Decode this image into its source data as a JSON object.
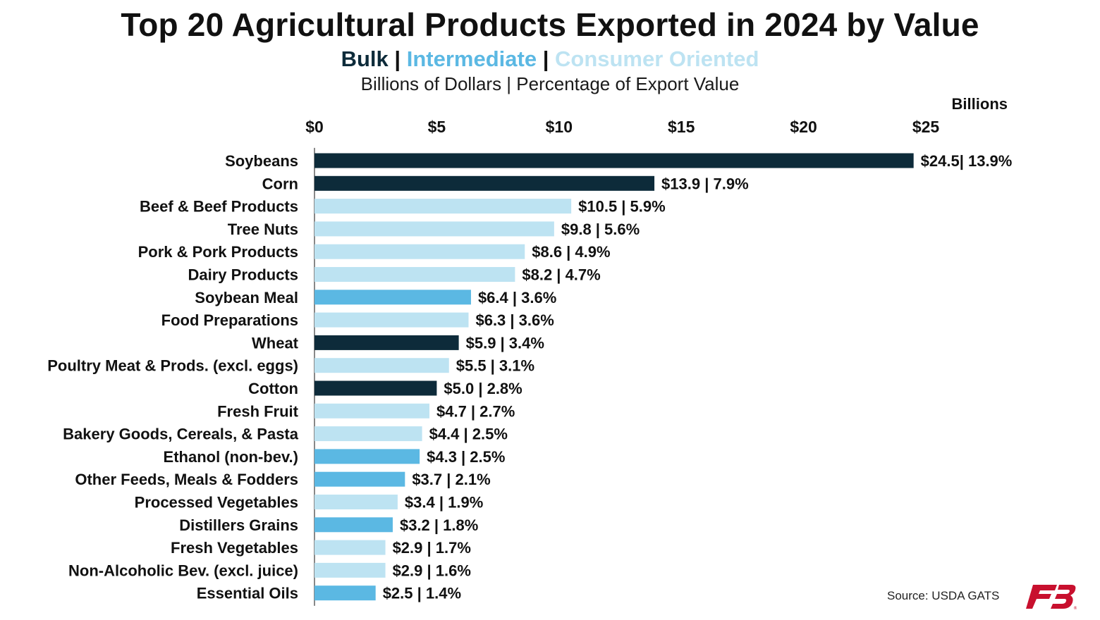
{
  "colors": {
    "bulk": "#0d2b3a",
    "intermediate": "#5bb8e3",
    "consumer_oriented": "#bde3f2",
    "axis": "#111111"
  },
  "header": {
    "title": "Top 20 Agricultural Products Exported in 2024 by Value",
    "legend_bulk": "Bulk",
    "legend_sep": "|",
    "legend_intermediate": "Intermediate",
    "legend_consumer": "Consumer Oriented",
    "subtitle": "Billions of Dollars | Percentage of Export Value"
  },
  "footer": {
    "source": "Source: USDA GATS",
    "logo_icon": "farm-bureau-logo"
  },
  "chart_data": {
    "type": "bar",
    "orientation": "horizontal",
    "title": "Top 20 Agricultural Products Exported in 2024 by Value",
    "unit_label": "Billions",
    "xlim": [
      0,
      25
    ],
    "x_ticks": [
      0,
      5,
      10,
      15,
      20,
      25
    ],
    "x_tick_labels": [
      "$0",
      "$5",
      "$10",
      "$15",
      "$20",
      "$25"
    ],
    "x_axis_position": "top",
    "grid": false,
    "categories": [
      "Soybeans",
      "Corn",
      "Beef & Beef Products",
      "Tree Nuts",
      "Pork & Pork Products",
      "Dairy Products",
      "Soybean Meal",
      "Food Preparations",
      "Wheat",
      "Poultry Meat & Prods. (excl. eggs)",
      "Cotton",
      "Fresh Fruit",
      "Bakery Goods, Cereals, & Pasta",
      "Ethanol (non-bev.)",
      "Other Feeds, Meals & Fodders",
      "Processed Vegetables",
      "Distillers Grains",
      "Fresh Vegetables",
      "Non-Alcoholic Bev. (excl. juice)",
      "Essential Oils"
    ],
    "values": [
      24.5,
      13.9,
      10.5,
      9.8,
      8.6,
      8.2,
      6.4,
      6.3,
      5.9,
      5.5,
      5.0,
      4.7,
      4.4,
      4.3,
      3.7,
      3.4,
      3.2,
      2.9,
      2.9,
      2.5
    ],
    "groups": [
      "bulk",
      "bulk",
      "consumer_oriented",
      "consumer_oriented",
      "consumer_oriented",
      "consumer_oriented",
      "intermediate",
      "consumer_oriented",
      "bulk",
      "consumer_oriented",
      "bulk",
      "consumer_oriented",
      "consumer_oriented",
      "intermediate",
      "intermediate",
      "consumer_oriented",
      "intermediate",
      "consumer_oriented",
      "consumer_oriented",
      "intermediate"
    ],
    "data_labels": [
      "$24.5| 13.9%",
      "$13.9 | 7.9%",
      "$10.5 | 5.9%",
      "$9.8 | 5.6%",
      "$8.6 | 4.9%",
      "$8.2 | 4.7%",
      "$6.4 | 3.6%",
      "$6.3 | 3.6%",
      "$5.9 | 3.4%",
      "$5.5 | 3.1%",
      "$5.0 | 2.8%",
      "$4.7 | 2.7%",
      "$4.4 | 2.5%",
      "$4.3 | 2.5%",
      "$3.7 | 2.1%",
      "$3.4 | 1.9%",
      "$3.2 | 1.8%",
      "$2.9 | 1.7%",
      "$2.9 | 1.6%",
      "$2.5 | 1.4%"
    ],
    "legend": [
      "Bulk",
      "Intermediate",
      "Consumer Oriented"
    ],
    "legend_placement": "top-center"
  }
}
